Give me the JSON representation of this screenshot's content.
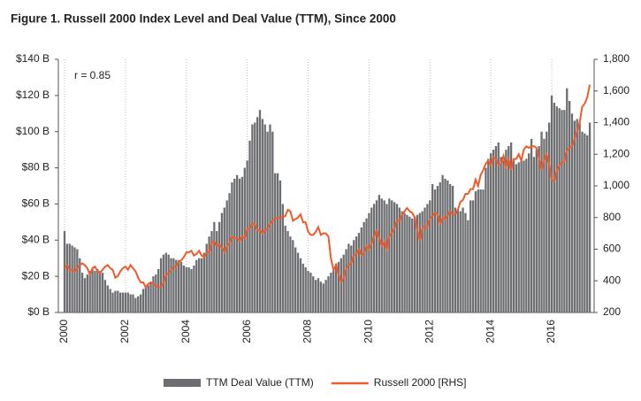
{
  "chart_data": {
    "type": "bar_line",
    "title": "Figure 1. Russell 2000 Index Level and Deal Value (TTM), Since 2000",
    "annotation": "r = 0.85",
    "categories": [
      "2000",
      null,
      null,
      null,
      null,
      null,
      null,
      null,
      null,
      null,
      null,
      null,
      null,
      null,
      null,
      null,
      null,
      null,
      null,
      null,
      null,
      null,
      null,
      null,
      "2002",
      null,
      null,
      null,
      null,
      null,
      null,
      null,
      null,
      null,
      null,
      null,
      null,
      null,
      null,
      null,
      null,
      null,
      null,
      null,
      null,
      null,
      null,
      null,
      "2004",
      null,
      null,
      null,
      null,
      null,
      null,
      null,
      null,
      null,
      null,
      null,
      null,
      null,
      null,
      null,
      null,
      null,
      null,
      null,
      null,
      null,
      null,
      null,
      "2006",
      null,
      null,
      null,
      null,
      null,
      null,
      null,
      null,
      null,
      null,
      null,
      null,
      null,
      null,
      null,
      null,
      null,
      null,
      null,
      null,
      null,
      null,
      null,
      "2008",
      null,
      null,
      null,
      null,
      null,
      null,
      null,
      null,
      null,
      null,
      null,
      null,
      null,
      null,
      null,
      null,
      null,
      null,
      null,
      null,
      null,
      null,
      null,
      "2010",
      null,
      null,
      null,
      null,
      null,
      null,
      null,
      null,
      null,
      null,
      null,
      null,
      null,
      null,
      null,
      null,
      null,
      null,
      null,
      null,
      null,
      null,
      null,
      "2012",
      null,
      null,
      null,
      null,
      null,
      null,
      null,
      null,
      null,
      null,
      null,
      null,
      null,
      null,
      null,
      null,
      null,
      null,
      null,
      null,
      null,
      null,
      null,
      "2014",
      null,
      null,
      null,
      null,
      null,
      null,
      null,
      null,
      null,
      null,
      null,
      null,
      null,
      null,
      null,
      null,
      null,
      null,
      null,
      null,
      null,
      null,
      null,
      "2016",
      null,
      null,
      null,
      null,
      null,
      null,
      null,
      null,
      null,
      null,
      null,
      null,
      null,
      null,
      null
    ],
    "series": [
      {
        "name": "TTM Deal Value (TTM)",
        "color": "#6d6e71",
        "kind": "bar",
        "axis": "y",
        "values": [
          45,
          38,
          38,
          37,
          36,
          35,
          30,
          22,
          19,
          21,
          23,
          24,
          23,
          24,
          23,
          22,
          18,
          15,
          13,
          11,
          12,
          12,
          11,
          11,
          11,
          11,
          10,
          10,
          8,
          9,
          10,
          13,
          14,
          15,
          17,
          20,
          21,
          24,
          30,
          32,
          33,
          32,
          30,
          30,
          29,
          29,
          28,
          26,
          25,
          25,
          24,
          26,
          29,
          30,
          30,
          33,
          38,
          42,
          45,
          50,
          45,
          50,
          55,
          58,
          62,
          66,
          72,
          74,
          76,
          74,
          75,
          80,
          84,
          95,
          104,
          105,
          108,
          112,
          107,
          104,
          100,
          104,
          100,
          77,
          77,
          73,
          60,
          48,
          45,
          42,
          40,
          36,
          33,
          30,
          27,
          25,
          23,
          22,
          20,
          18,
          19,
          17,
          16,
          18,
          20,
          22,
          25,
          27,
          28,
          30,
          32,
          35,
          38,
          37,
          40,
          42,
          44,
          47,
          50,
          52,
          55,
          58,
          60,
          62,
          65,
          63,
          62,
          60,
          63,
          62,
          61,
          60,
          58,
          56,
          55,
          54,
          53,
          52,
          53,
          54,
          55,
          56,
          58,
          60,
          62,
          71,
          68,
          70,
          72,
          76,
          74,
          73,
          71,
          70,
          58,
          57,
          56,
          58,
          55,
          51,
          62,
          62,
          67,
          68,
          68,
          68,
          80,
          85,
          88,
          90,
          92,
          94,
          86,
          84,
          90,
          92,
          94,
          84,
          82,
          83,
          84,
          84,
          85,
          88,
          96,
          86,
          90,
          92,
          100,
          96,
          100,
          105,
          120,
          116,
          114,
          113,
          112,
          112,
          124,
          117,
          110,
          106,
          107,
          105,
          100,
          99,
          98,
          105
        ]
      },
      {
        "name": "Russell 2000 [RHS]",
        "color": "#f15a29",
        "kind": "line",
        "axis": "y2",
        "values": [
          480,
          500,
          470,
          470,
          460,
          480,
          500,
          510,
          500,
          480,
          440,
          480,
          490,
          460,
          450,
          470,
          490,
          500,
          480,
          470,
          420,
          430,
          460,
          480,
          490,
          470,
          500,
          480,
          460,
          420,
          390,
          390,
          360,
          380,
          390,
          380,
          370,
          360,
          360,
          390,
          440,
          450,
          470,
          490,
          490,
          520,
          530,
          550,
          580,
          580,
          590,
          560,
          570,
          590,
          560,
          550,
          580,
          580,
          640,
          650,
          620,
          630,
          610,
          580,
          620,
          640,
          680,
          670,
          670,
          650,
          680,
          670,
          730,
          730,
          760,
          760,
          720,
          720,
          700,
          720,
          730,
          760,
          780,
          790,
          800,
          800,
          800,
          810,
          850,
          840,
          780,
          790,
          800,
          820,
          770,
          770,
          710,
          690,
          690,
          710,
          740,
          690,
          700,
          700,
          680,
          540,
          470,
          500,
          440,
          390,
          420,
          480,
          500,
          510,
          560,
          570,
          600,
          560,
          580,
          620,
          600,
          630,
          680,
          720,
          670,
          620,
          650,
          600,
          680,
          700,
          730,
          780,
          780,
          820,
          840,
          860,
          840,
          830,
          800,
          720,
          650,
          740,
          740,
          740,
          790,
          810,
          830,
          820,
          760,
          800,
          790,
          810,
          840,
          820,
          820,
          850,
          900,
          910,
          950,
          950,
          980,
          980,
          1040,
          1000,
          1070,
          1100,
          1140,
          1160,
          1130,
          1180,
          1170,
          1130,
          1140,
          1190,
          1120,
          1170,
          1100,
          1170,
          1170,
          1200,
          1160,
          1230,
          1250,
          1240,
          1250,
          1250,
          1240,
          1170,
          1100,
          1160,
          1200,
          1140,
          1040,
          1030,
          1100,
          1130,
          1150,
          1150,
          1220,
          1240,
          1250,
          1300,
          1350,
          1400,
          1500,
          1520,
          1560,
          1640
        ]
      }
    ],
    "ylim": [
      0,
      140
    ],
    "yticks": [
      {
        "value": 0,
        "label": "$0 B"
      },
      {
        "value": 20,
        "label": "$20 B"
      },
      {
        "value": 40,
        "label": "$40 B"
      },
      {
        "value": 60,
        "label": "$60 B"
      },
      {
        "value": 80,
        "label": "$80 B"
      },
      {
        "value": 100,
        "label": "$100 B"
      },
      {
        "value": 120,
        "label": "$120 B"
      },
      {
        "value": 140,
        "label": "$140 B"
      }
    ],
    "y2lim": [
      200,
      1800
    ],
    "y2ticks": [
      200,
      400,
      600,
      800,
      {
        "value": 1000,
        "label": "1,000"
      },
      {
        "value": 1200,
        "label": "1,200"
      },
      {
        "value": 1400,
        "label": "1,400"
      },
      {
        "value": 1600,
        "label": "1,600"
      },
      {
        "value": 1800,
        "label": "1,800"
      }
    ],
    "grid": true
  }
}
